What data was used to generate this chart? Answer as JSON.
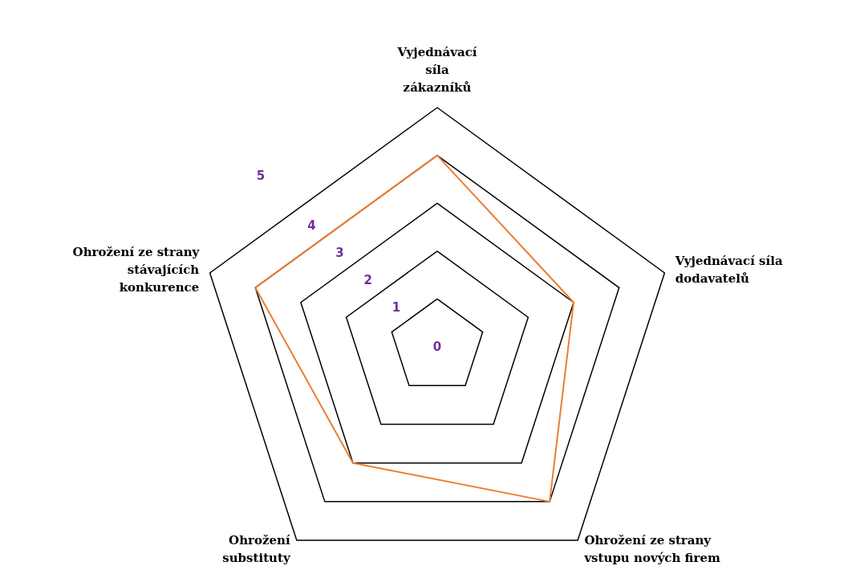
{
  "chart_data": {
    "type": "radar",
    "categories": [
      "Vyjednávací\nsíla\nzákazníků",
      "Vyjednávací síla\ndodavatelů",
      "Ohrožení ze strany\nvstupu nových firem",
      "Ohrožení\nsubstituty",
      "Ohrožení ze strany\nstávajících\nkonkurence"
    ],
    "series": [
      {
        "color": "#ed7d31",
        "values": [
          4,
          3,
          4,
          3,
          4
        ]
      }
    ],
    "ylim": [
      0,
      5
    ],
    "yticks": [
      0,
      1,
      2,
      3,
      4,
      5
    ],
    "grid": true,
    "marker": "none",
    "line_style": "solid"
  }
}
